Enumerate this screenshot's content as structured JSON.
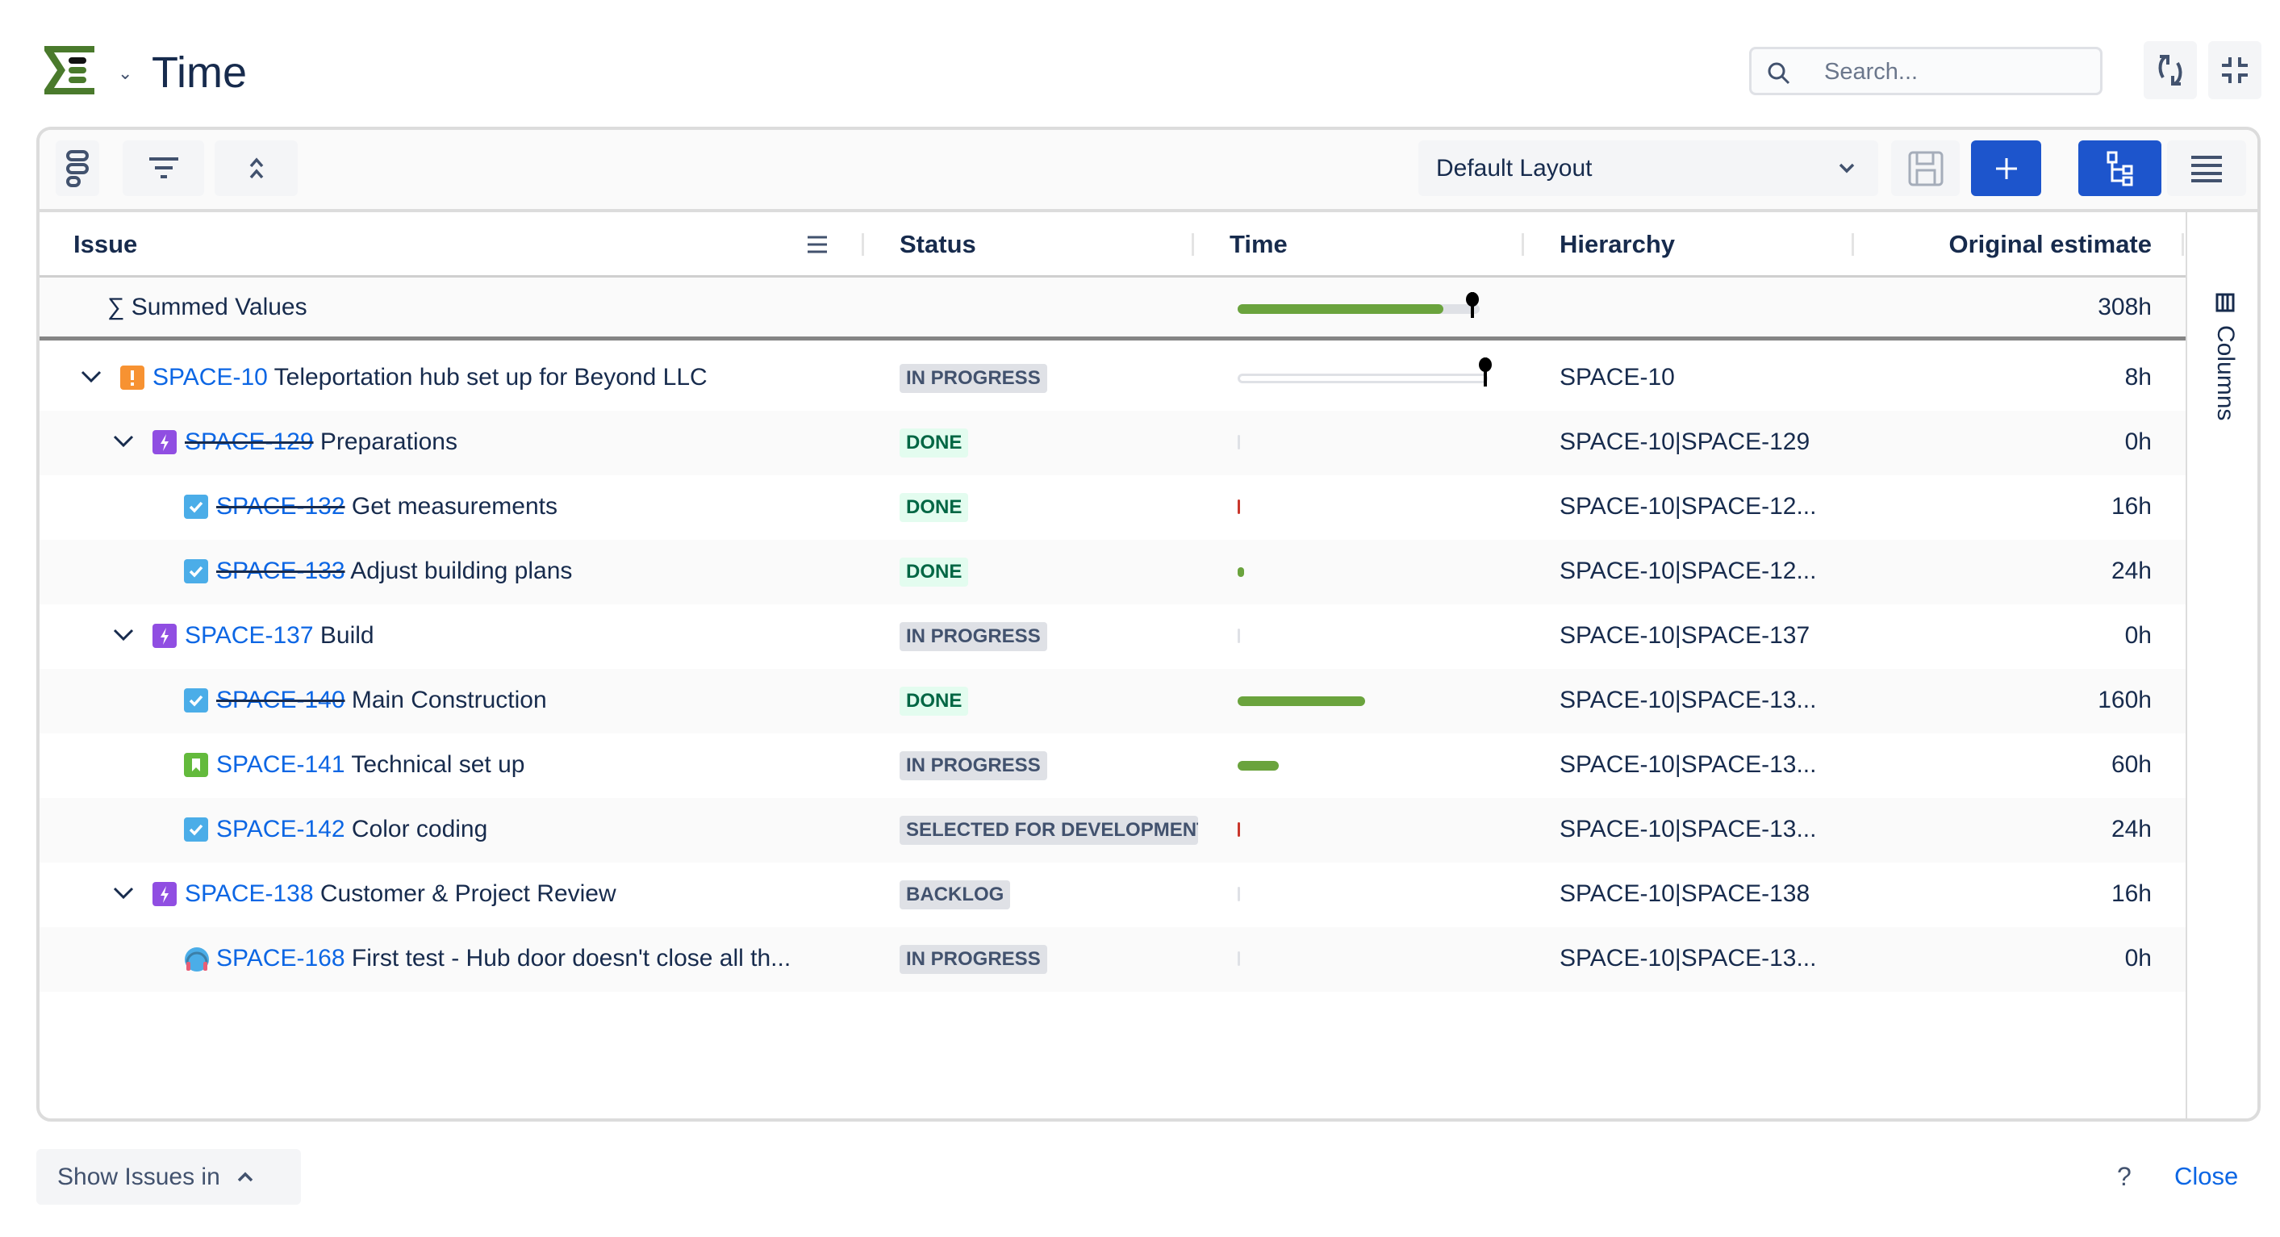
{
  "header": {
    "title": "Time",
    "search_placeholder": "Search...",
    "logo_icon": "structure-sigma-logo",
    "refresh_icon": "refresh-icon",
    "collapse_icon": "compress-icon"
  },
  "toolbar": {
    "layout_select": "Default Layout",
    "buttons": [
      "structure-icon",
      "filter-icon",
      "collapse-all-icon",
      "save-icon",
      "add-icon",
      "hierarchy-icon",
      "list-icon"
    ]
  },
  "columns": {
    "issue": "Issue",
    "status": "Status",
    "time": "Time",
    "hierarchy": "Hierarchy",
    "original_estimate": "Original estimate",
    "side_panel": "Columns"
  },
  "summary": {
    "label": "∑ Summed Values",
    "original_estimate": "308h",
    "time_progress": 0.85
  },
  "colors": {
    "link": "#0c66e4",
    "primary": "#1d55cc",
    "progress_green": "#6aa33d",
    "logo_green": "#4a7a2c"
  },
  "rows": [
    {
      "level": 0,
      "expand": true,
      "type": "impediment",
      "key": "SPACE-10",
      "summary": "Teleportation hub set up for Beyond LLC",
      "resolved": false,
      "status": "IN PROGRESS",
      "status_kind": "prog",
      "time_progress": 0,
      "time_marker": true,
      "hierarchy": "SPACE-10",
      "estimate": "8h"
    },
    {
      "level": 1,
      "expand": true,
      "type": "epic",
      "key": "SPACE-129",
      "summary": "Preparations",
      "resolved": true,
      "status": "DONE",
      "status_kind": "done",
      "time_progress": 0,
      "hierarchy": "SPACE-10|SPACE-129",
      "estimate": "0h"
    },
    {
      "level": 2,
      "type": "task",
      "key": "SPACE-132",
      "summary": "Get measurements",
      "resolved": true,
      "status": "DONE",
      "status_kind": "done",
      "time_progress": 0.01,
      "hierarchy": "SPACE-10|SPACE-12...",
      "estimate": "16h"
    },
    {
      "level": 2,
      "type": "task",
      "key": "SPACE-133",
      "summary": "Adjust building plans",
      "resolved": true,
      "status": "DONE",
      "status_kind": "done",
      "time_progress": 0.025,
      "hierarchy": "SPACE-10|SPACE-12...",
      "estimate": "24h"
    },
    {
      "level": 1,
      "expand": true,
      "type": "epic",
      "key": "SPACE-137",
      "summary": "Build",
      "resolved": false,
      "status": "IN PROGRESS",
      "status_kind": "prog",
      "time_progress": 0,
      "hierarchy": "SPACE-10|SPACE-137",
      "estimate": "0h"
    },
    {
      "level": 2,
      "type": "task",
      "key": "SPACE-140",
      "summary": "Main Construction",
      "resolved": true,
      "status": "DONE",
      "status_kind": "done",
      "time_progress": 0.51,
      "hierarchy": "SPACE-10|SPACE-13...",
      "estimate": "160h"
    },
    {
      "level": 2,
      "type": "story",
      "key": "SPACE-141",
      "summary": "Technical set up",
      "resolved": false,
      "status": "IN PROGRESS",
      "status_kind": "prog",
      "time_progress": 0.165,
      "hierarchy": "SPACE-10|SPACE-13...",
      "estimate": "60h"
    },
    {
      "level": 2,
      "type": "task",
      "key": "SPACE-142",
      "summary": "Color coding",
      "resolved": false,
      "status": "SELECTED FOR DEVELOPMENT",
      "status_kind": "prog",
      "time_progress": 0.01,
      "hierarchy": "SPACE-10|SPACE-13...",
      "estimate": "24h"
    },
    {
      "level": 1,
      "expand": true,
      "type": "epic",
      "key": "SPACE-138",
      "summary": "Customer & Project Review",
      "resolved": false,
      "status": "BACKLOG",
      "status_kind": "prog",
      "time_progress": 0,
      "hierarchy": "SPACE-10|SPACE-138",
      "estimate": "16h"
    },
    {
      "level": 2,
      "type": "support",
      "key": "SPACE-168",
      "summary": "First test - Hub door doesn't close all th...",
      "resolved": false,
      "status": "IN PROGRESS",
      "status_kind": "prog",
      "time_progress": 0,
      "hierarchy": "SPACE-10|SPACE-13...",
      "estimate": "0h"
    }
  ],
  "footer": {
    "show_issues": "Show Issues in",
    "help": "?",
    "close": "Close"
  }
}
